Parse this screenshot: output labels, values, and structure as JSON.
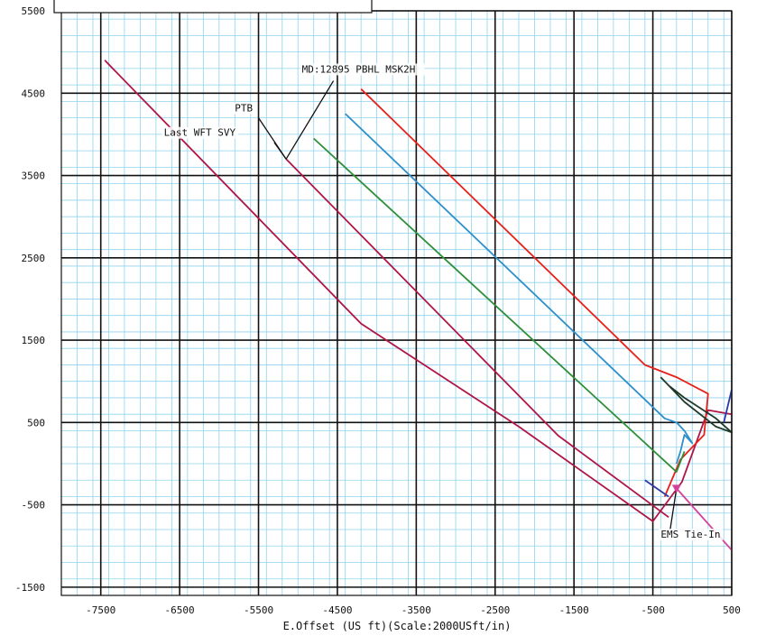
{
  "chart_data": {
    "type": "line",
    "title": "",
    "xlabel": "E.Offset (US ft)(Scale:2000USft/in)",
    "ylabel": "",
    "xlim": [
      -8000,
      500
    ],
    "ylim": [
      -1600,
      5500
    ],
    "grid": true,
    "x_ticks": [
      -7500,
      -6500,
      -5500,
      -4500,
      -3500,
      -2500,
      -1500,
      -500,
      500
    ],
    "y_ticks": [
      5500,
      4500,
      3500,
      2500,
      1500,
      500,
      -500,
      -1500
    ],
    "colors": {
      "minor_grid": "#8fd3ee",
      "major_grid": "#111111",
      "maroon": "#b01545",
      "red": "#e8201a",
      "blue": "#2f8fc9",
      "green": "#2f8f3a",
      "darkgreen": "#203a2a",
      "magenta": "#d4409a",
      "navy": "#2a3aa8"
    },
    "series": [
      {
        "color": "maroon",
        "points": [
          [
            -7450,
            4900
          ],
          [
            -4200,
            1700
          ],
          [
            -2200,
            450
          ],
          [
            -500,
            -700
          ],
          [
            -130,
            -220
          ],
          [
            200,
            650
          ],
          [
            500,
            600
          ]
        ]
      },
      {
        "color": "maroon",
        "points": [
          [
            -5150,
            3700
          ],
          [
            -1700,
            340
          ],
          [
            -300,
            -650
          ]
        ]
      },
      {
        "color": "red",
        "points": [
          [
            -4200,
            4550
          ],
          [
            -600,
            1200
          ],
          [
            -200,
            1050
          ],
          [
            200,
            850
          ],
          [
            150,
            350
          ],
          [
            -150,
            50
          ],
          [
            -350,
            -400
          ]
        ]
      },
      {
        "color": "blue",
        "points": [
          [
            -4400,
            4250
          ],
          [
            -350,
            550
          ],
          [
            -200,
            500
          ],
          [
            -100,
            400
          ],
          [
            0,
            250
          ],
          [
            -100,
            350
          ],
          [
            -150,
            150
          ],
          [
            -200,
            0
          ]
        ]
      },
      {
        "color": "green",
        "points": [
          [
            -4800,
            3950
          ],
          [
            -200,
            -100
          ],
          [
            -100,
            150
          ]
        ]
      },
      {
        "color": "magenta",
        "points": [
          [
            -200,
            -300
          ],
          [
            500,
            -1050
          ]
        ]
      },
      {
        "color": "darkgreen",
        "points": [
          [
            -400,
            1050
          ],
          [
            -100,
            750
          ],
          [
            300,
            450
          ],
          [
            500,
            380
          ],
          [
            300,
            550
          ],
          [
            -100,
            800
          ],
          [
            -300,
            950
          ],
          [
            -400,
            1050
          ]
        ]
      },
      {
        "color": "navy",
        "points": [
          [
            400,
            500
          ],
          [
            500,
            900
          ]
        ]
      },
      {
        "color": "navy",
        "points": [
          [
            -600,
            -200
          ],
          [
            -300,
            -400
          ]
        ]
      }
    ],
    "annotations": [
      {
        "text": "MD:12895  PBHL MSK2H",
        "x": -4950,
        "y": 4750,
        "leader": [
          [
            -5150,
            3700
          ],
          [
            -4550,
            4650
          ]
        ]
      },
      {
        "text": "PTB",
        "x": -5800,
        "y": 4280,
        "leader": [
          [
            -5150,
            3700
          ],
          [
            -5500,
            4200
          ]
        ]
      },
      {
        "text": "Last WFT SVY",
        "x": -6700,
        "y": 3980,
        "leader": [
          [
            -5150,
            3700
          ],
          [
            -5300,
            3900
          ]
        ]
      },
      {
        "text": "EMS Tie-In",
        "x": -400,
        "y": -900,
        "leader": [
          [
            -200,
            -300
          ],
          [
            -280,
            -800
          ]
        ]
      }
    ]
  }
}
